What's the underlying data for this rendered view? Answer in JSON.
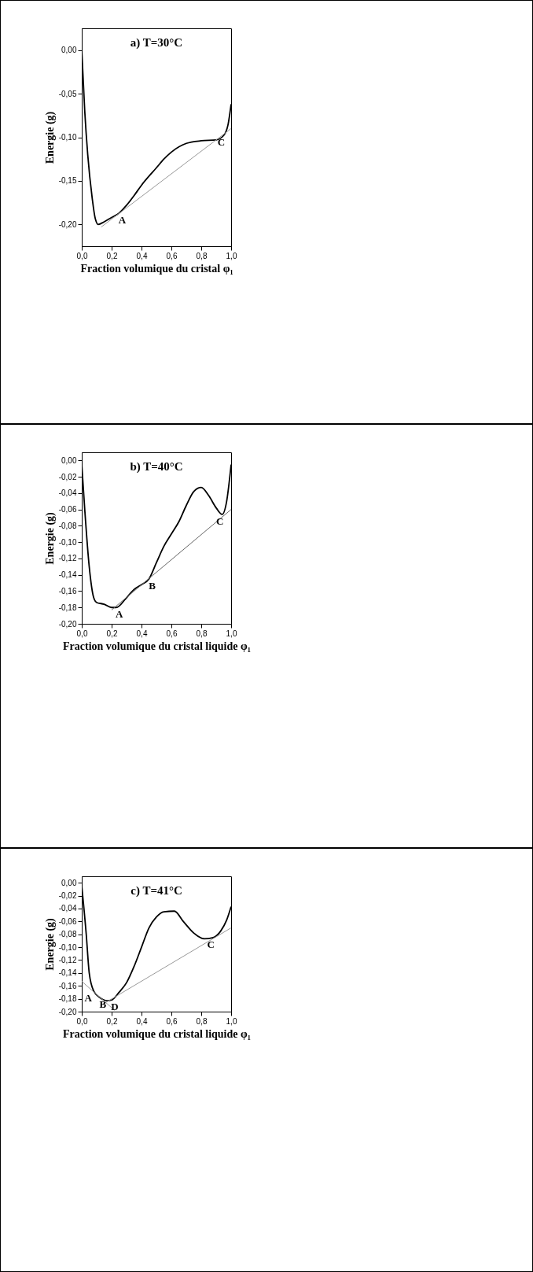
{
  "chart_data": [
    {
      "type": "line",
      "title": "a)  T=30°C",
      "xlabel": "Fraction volumique du cristal φ₁",
      "ylabel": "Energie (g)",
      "xlim": [
        0,
        1
      ],
      "ylim": [
        -0.225,
        0.025
      ],
      "xticks": [
        {
          "value": 0,
          "label": "0,0"
        },
        {
          "value": 0.2,
          "label": "0,2"
        },
        {
          "value": 0.4,
          "label": "0,4"
        },
        {
          "value": 0.6,
          "label": "0,6"
        },
        {
          "value": 0.8,
          "label": "0,8"
        },
        {
          "value": 1,
          "label": "1,0"
        }
      ],
      "yticks": [
        {
          "value": 0,
          "label": "0,00"
        },
        {
          "value": -0.05,
          "label": "-0,05"
        },
        {
          "value": -0.1,
          "label": "-0,10"
        },
        {
          "value": -0.15,
          "label": "-0,15"
        },
        {
          "value": -0.2,
          "label": "-0,20"
        }
      ],
      "series": [
        {
          "color": "#000000",
          "x": [
            0,
            0.02,
            0.04,
            0.07,
            0.09,
            0.11,
            0.15,
            0.2,
            0.25,
            0.3,
            0.35,
            0.4,
            0.5,
            0.55,
            0.6,
            0.7,
            0.8,
            0.9,
            0.95,
            0.98,
            1.0
          ],
          "values": [
            0,
            -0.07,
            -0.12,
            -0.17,
            -0.193,
            -0.2,
            -0.197,
            -0.192,
            -0.187,
            -0.178,
            -0.167,
            -0.155,
            -0.135,
            -0.125,
            -0.117,
            -0.107,
            -0.104,
            -0.103,
            -0.098,
            -0.085,
            -0.062
          ]
        },
        {
          "type": "line",
          "color": "#999999",
          "x": [
            0.13,
            1.0
          ],
          "values": [
            -0.203,
            -0.09
          ]
        }
      ],
      "annotations": [
        {
          "text": "A",
          "x": 0.25,
          "y": -0.187
        },
        {
          "text": "C",
          "x": 0.95,
          "y": -0.098
        }
      ]
    },
    {
      "type": "line",
      "title": "b)  T=40°C",
      "xlabel": "Fraction volumique du cristal liquide φ₁",
      "ylabel": "Energie (g)",
      "xlim": [
        0,
        1
      ],
      "ylim": [
        -0.2,
        0.01
      ],
      "xticks": [
        {
          "value": 0,
          "label": "0,0"
        },
        {
          "value": 0.2,
          "label": "0,2"
        },
        {
          "value": 0.4,
          "label": "0,4"
        },
        {
          "value": 0.6,
          "label": "0,6"
        },
        {
          "value": 0.8,
          "label": "0,8"
        },
        {
          "value": 1,
          "label": "1,0"
        }
      ],
      "yticks": [
        {
          "value": 0,
          "label": "0,00"
        },
        {
          "value": -0.02,
          "label": "-0,02"
        },
        {
          "value": -0.04,
          "label": "-0,04"
        },
        {
          "value": -0.06,
          "label": "-0,06"
        },
        {
          "value": -0.08,
          "label": "-0,08"
        },
        {
          "value": -0.1,
          "label": "-0,10"
        },
        {
          "value": -0.12,
          "label": "-0,12"
        },
        {
          "value": -0.14,
          "label": "-0,14"
        },
        {
          "value": -0.16,
          "label": "-0,16"
        },
        {
          "value": -0.18,
          "label": "-0,18"
        },
        {
          "value": -0.2,
          "label": "-0,20"
        }
      ],
      "series": [
        {
          "color": "#000000",
          "x": [
            0,
            0.02,
            0.05,
            0.08,
            0.1,
            0.15,
            0.2,
            0.23,
            0.3,
            0.35,
            0.4,
            0.45,
            0.5,
            0.55,
            0.6,
            0.65,
            0.7,
            0.75,
            0.8,
            0.85,
            0.9,
            0.94,
            0.97,
            1.0
          ],
          "values": [
            -0.005,
            -0.06,
            -0.13,
            -0.168,
            -0.174,
            -0.176,
            -0.18,
            -0.18,
            -0.168,
            -0.158,
            -0.152,
            -0.145,
            -0.125,
            -0.105,
            -0.09,
            -0.075,
            -0.055,
            -0.038,
            -0.033,
            -0.043,
            -0.058,
            -0.066,
            -0.05,
            -0.005
          ]
        },
        {
          "type": "line",
          "color": "#666666",
          "x": [
            0.2,
            1.0
          ],
          "values": [
            -0.183,
            -0.06
          ]
        }
      ],
      "annotations": [
        {
          "text": "A",
          "x": 0.23,
          "y": -0.18
        },
        {
          "text": "B",
          "x": 0.45,
          "y": -0.145
        },
        {
          "text": "C",
          "x": 0.94,
          "y": -0.066
        }
      ]
    },
    {
      "type": "line",
      "title": "c)  T=41°C",
      "xlabel": "Fraction volumique du cristal liquide φ₁",
      "ylabel": "Energie (g)",
      "xlim": [
        0,
        1
      ],
      "ylim": [
        -0.2,
        0.01
      ],
      "xticks": [
        {
          "value": 0,
          "label": "0,0"
        },
        {
          "value": 0.2,
          "label": "0,2"
        },
        {
          "value": 0.4,
          "label": "0,4"
        },
        {
          "value": 0.6,
          "label": "0,6"
        },
        {
          "value": 0.8,
          "label": "0,8"
        },
        {
          "value": 1,
          "label": "1,0"
        }
      ],
      "yticks": [
        {
          "value": 0,
          "label": "0,00"
        },
        {
          "value": -0.02,
          "label": "-0,02"
        },
        {
          "value": -0.04,
          "label": "-0,04"
        },
        {
          "value": -0.06,
          "label": "-0,06"
        },
        {
          "value": -0.08,
          "label": "-0,08"
        },
        {
          "value": -0.1,
          "label": "-0,10"
        },
        {
          "value": -0.12,
          "label": "-0,12"
        },
        {
          "value": -0.14,
          "label": "-0,14"
        },
        {
          "value": -0.16,
          "label": "-0,16"
        },
        {
          "value": -0.18,
          "label": "-0,18"
        },
        {
          "value": -0.2,
          "label": "-0,20"
        }
      ],
      "series": [
        {
          "color": "#000000",
          "x": [
            0,
            0.03,
            0.05,
            0.08,
            0.12,
            0.17,
            0.2,
            0.25,
            0.3,
            0.35,
            0.4,
            0.45,
            0.5,
            0.55,
            0.62,
            0.68,
            0.75,
            0.82,
            0.88,
            0.93,
            0.97,
            1.0
          ],
          "values": [
            -0.005,
            -0.08,
            -0.14,
            -0.168,
            -0.178,
            -0.183,
            -0.182,
            -0.17,
            -0.155,
            -0.13,
            -0.1,
            -0.07,
            -0.053,
            -0.045,
            -0.044,
            -0.06,
            -0.078,
            -0.087,
            -0.085,
            -0.075,
            -0.058,
            -0.037
          ]
        },
        {
          "type": "line",
          "color": "#999999",
          "x": [
            0,
            0.22
          ],
          "values": [
            -0.153,
            -0.198
          ]
        },
        {
          "type": "line",
          "color": "#999999",
          "x": [
            0.13,
            1.0
          ],
          "values": [
            -0.19,
            -0.07
          ]
        }
      ],
      "annotations": [
        {
          "text": "A",
          "x": 0.08,
          "y": -0.168
        },
        {
          "text": "B",
          "x": 0.12,
          "y": -0.178
        },
        {
          "text": "D",
          "x": 0.2,
          "y": -0.182
        },
        {
          "text": "C",
          "x": 0.88,
          "y": -0.085
        }
      ]
    }
  ]
}
